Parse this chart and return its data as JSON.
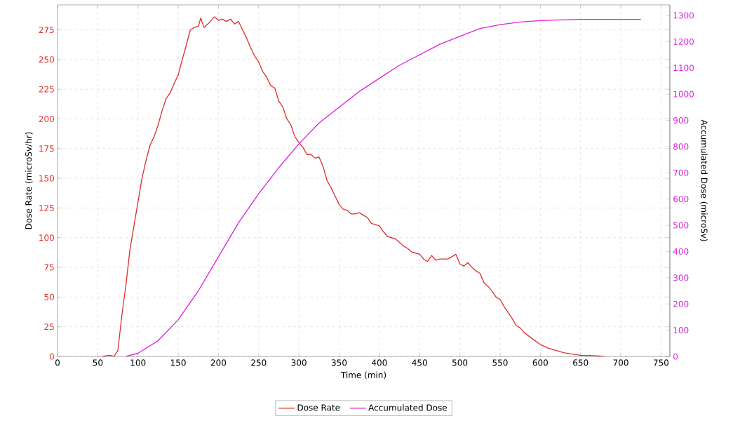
{
  "chart_data": {
    "type": "line",
    "xlabel": "Time (min)",
    "ylabel": "Dose Rate (microSv/hr)",
    "y2label": "Accumulated Dose (microSv)",
    "xlim": [
      0,
      761
    ],
    "ylim": [
      0,
      296
    ],
    "y2lim": [
      0,
      1340
    ],
    "xticks": [
      0,
      50,
      100,
      150,
      200,
      250,
      300,
      350,
      400,
      450,
      500,
      550,
      600,
      650,
      700,
      750
    ],
    "yticks": [
      0,
      25,
      50,
      75,
      100,
      125,
      150,
      175,
      200,
      225,
      250,
      275
    ],
    "y2ticks": [
      0,
      100,
      200,
      300,
      400,
      500,
      600,
      700,
      800,
      900,
      1000,
      1100,
      1200,
      1300
    ],
    "grid": true,
    "legend": "bottom",
    "series": [
      {
        "name": "Dose Rate",
        "color": "#e03030",
        "x": [
          55,
          65,
          70,
          75,
          80,
          85,
          90,
          95,
          100,
          105,
          110,
          115,
          120,
          125,
          130,
          135,
          140,
          145,
          150,
          155,
          160,
          165,
          170,
          175,
          178,
          182,
          190,
          195,
          200,
          205,
          210,
          215,
          220,
          225,
          230,
          235,
          240,
          245,
          250,
          255,
          260,
          265,
          270,
          275,
          280,
          285,
          290,
          295,
          300,
          305,
          310,
          315,
          320,
          325,
          330,
          335,
          340,
          345,
          350,
          355,
          360,
          365,
          370,
          375,
          380,
          385,
          390,
          395,
          400,
          405,
          410,
          415,
          420,
          425,
          430,
          435,
          440,
          445,
          450,
          455,
          460,
          465,
          470,
          475,
          480,
          485,
          490,
          495,
          500,
          505,
          510,
          515,
          520,
          525,
          530,
          535,
          540,
          545,
          550,
          555,
          560,
          565,
          570,
          575,
          580,
          590,
          600,
          610,
          620,
          630,
          640,
          650,
          660,
          670,
          680
        ],
        "values": [
          0,
          1,
          0,
          5,
          35,
          60,
          90,
          110,
          130,
          150,
          165,
          178,
          185,
          195,
          207,
          217,
          222,
          230,
          237,
          250,
          262,
          275,
          277,
          278,
          285,
          277,
          282,
          286,
          283,
          284,
          282,
          284,
          280,
          282,
          275,
          268,
          260,
          253,
          248,
          240,
          235,
          228,
          226,
          215,
          210,
          200,
          195,
          185,
          180,
          176,
          170,
          170,
          167,
          168,
          160,
          148,
          142,
          135,
          128,
          124,
          123,
          120,
          120,
          121,
          119,
          117,
          112,
          111,
          110,
          105,
          101,
          100,
          99,
          96,
          93,
          91,
          88,
          87,
          86,
          82,
          80,
          85,
          81,
          82,
          82,
          82,
          84,
          86,
          78,
          76,
          79,
          75,
          72,
          70,
          62,
          59,
          55,
          50,
          48,
          42,
          37,
          32,
          26,
          24,
          20,
          15,
          10,
          7,
          5,
          3,
          2,
          1,
          0.8,
          0.5,
          0
        ]
      },
      {
        "name": "Accumulated Dose",
        "color": "#dd22dd",
        "axis": "y2",
        "x": [
          85,
          100,
          125,
          150,
          175,
          200,
          225,
          250,
          275,
          300,
          325,
          350,
          375,
          400,
          425,
          450,
          475,
          500,
          525,
          550,
          575,
          600,
          625,
          650,
          700,
          725
        ],
        "values": [
          0,
          12,
          60,
          140,
          250,
          380,
          510,
          620,
          720,
          810,
          890,
          950,
          1010,
          1060,
          1110,
          1150,
          1190,
          1220,
          1250,
          1265,
          1275,
          1280,
          1283,
          1285,
          1285,
          1285
        ]
      }
    ]
  }
}
